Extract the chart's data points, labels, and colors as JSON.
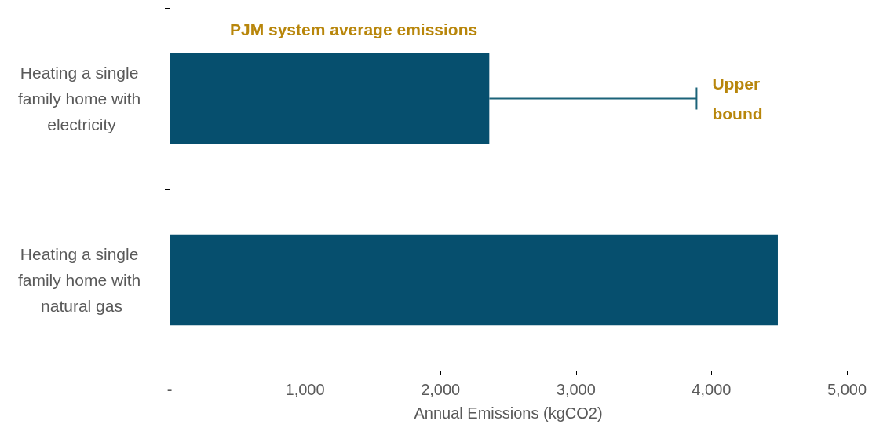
{
  "chart_data": {
    "type": "bar",
    "orientation": "horizontal",
    "xlabel": "Annual Emissions (kgCO2)",
    "categories": [
      "Heating a single family home with electricity",
      "Heating a single family home with natural gas"
    ],
    "values": [
      2360,
      4490
    ],
    "color": "#064f6e",
    "errors": [
      [
        2360,
        3890
      ],
      null
    ],
    "xlim": [
      0,
      5000
    ],
    "xticks": [
      {
        "value": 0,
        "label": "-"
      },
      {
        "value": 1000,
        "label": "1,000"
      },
      {
        "value": 2000,
        "label": "2,000"
      },
      {
        "value": 3000,
        "label": "3,000"
      },
      {
        "value": 4000,
        "label": "4,000"
      },
      {
        "value": 5000,
        "label": "5,000"
      }
    ],
    "annotations": [
      "PJM system average emissions",
      {
        "text": "Upper bound",
        "x": 3890,
        "y": "Heating a single family home with electricity"
      }
    ],
    "grid": false
  }
}
